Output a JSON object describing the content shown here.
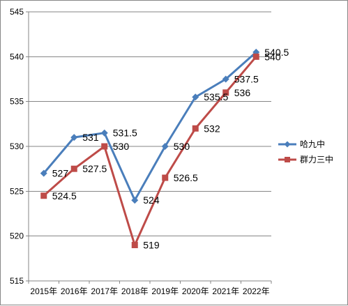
{
  "chart_data": {
    "type": "line",
    "title": "",
    "xlabel": "",
    "ylabel": "",
    "ylim": [
      515,
      545
    ],
    "ytick_step": 5,
    "grid": "horizontal",
    "legend_position": "right",
    "categories": [
      "2015年",
      "2016年",
      "2017年",
      "2018年",
      "2019年",
      "2020年",
      "2021年",
      "2022年"
    ],
    "series": [
      {
        "name": "哈九中",
        "color": "#4A7EBB",
        "marker": "diamond",
        "values": [
          527,
          531,
          531.5,
          524,
          530,
          535.5,
          537.5,
          540.5
        ],
        "labels": [
          "527",
          "531",
          "531.5",
          "524",
          "530",
          "535.5",
          "537.5",
          "540.5"
        ]
      },
      {
        "name": "群力三中",
        "color": "#BE4B48",
        "marker": "square",
        "values": [
          524.5,
          527.5,
          530,
          519,
          526.5,
          532,
          536,
          540
        ],
        "labels": [
          "524.5",
          "527.5",
          "530",
          "519",
          "526.5",
          "532",
          "536",
          "540"
        ]
      }
    ]
  }
}
